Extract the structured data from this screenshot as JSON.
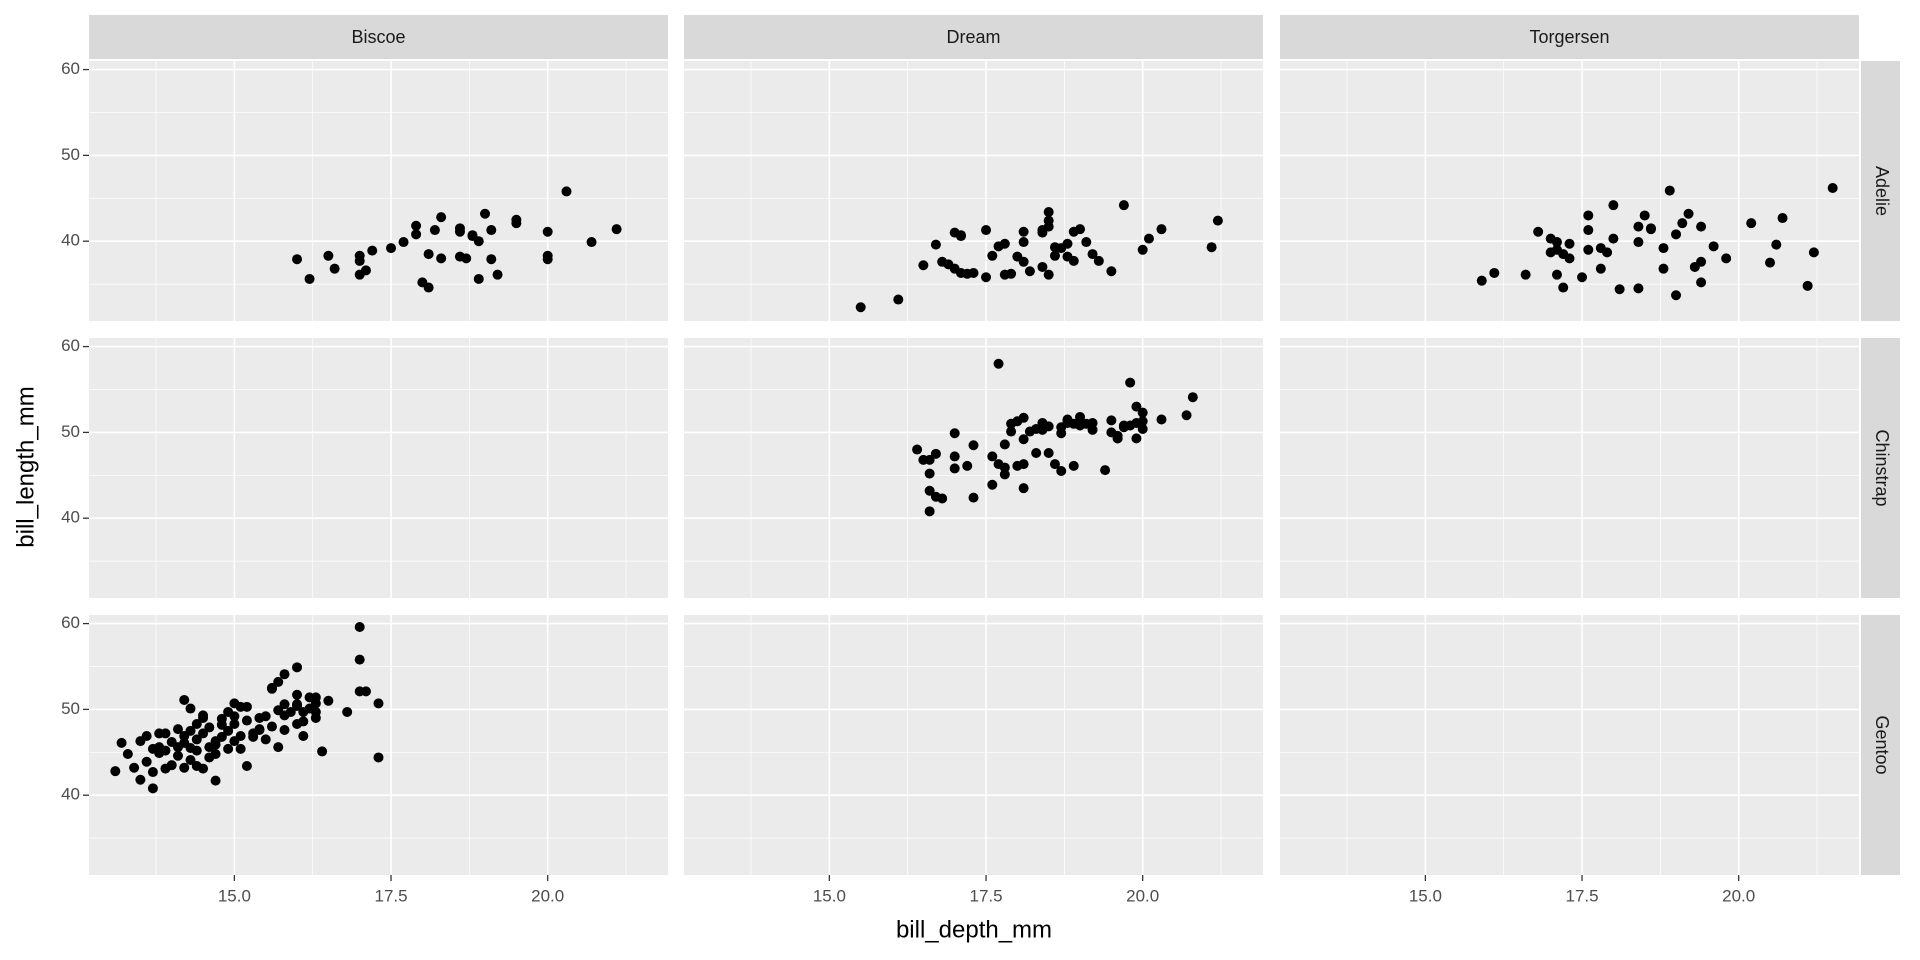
{
  "chart_data": {
    "type": "scatter",
    "x_label": "bill_depth_mm",
    "y_label": "bill_length_mm",
    "columns": [
      "Biscoe",
      "Dream",
      "Torgersen"
    ],
    "rows": [
      "Adelie",
      "Chinstrap",
      "Gentoo"
    ],
    "xlim": [
      12.68,
      21.92
    ],
    "ylim": [
      30.7,
      61.0
    ],
    "xticks": [
      {
        "value": 15,
        "label": "15.0"
      },
      17.5,
      {
        "value": 20,
        "label": "20.0"
      }
    ],
    "yticks": [
      40,
      50,
      60
    ],
    "color": "#000000",
    "grid": true,
    "panels": [
      [
        {
          "x": [
            16.0,
            16.2,
            16.5,
            16.6,
            17.0,
            17.0,
            17.0,
            17.1,
            17.2,
            17.5,
            17.7,
            17.9,
            17.9,
            18.0,
            18.1,
            18.1,
            18.2,
            18.3,
            18.3,
            18.6,
            18.6,
            18.6,
            18.7,
            18.8,
            18.8,
            18.9,
            18.9,
            19.0,
            19.1,
            19.1,
            19.2,
            19.5,
            19.5,
            20.0,
            20.0,
            20.0,
            20.3,
            20.7,
            21.1
          ],
          "y": [
            37.9,
            35.6,
            38.3,
            36.8,
            36.1,
            37.7,
            38.3,
            36.6,
            38.9,
            39.2,
            39.9,
            40.8,
            41.8,
            35.2,
            34.6,
            38.5,
            41.3,
            42.8,
            38.0,
            41.1,
            41.5,
            38.2,
            38.0,
            40.7,
            40.6,
            35.6,
            40.0,
            43.2,
            41.3,
            37.9,
            36.1,
            42.5,
            42.1,
            41.1,
            38.3,
            37.9,
            45.8,
            39.9,
            41.4
          ]
        },
        {
          "x": [
            15.5,
            16.1,
            16.5,
            16.7,
            16.8,
            16.9,
            17.0,
            17.0,
            17.1,
            17.1,
            17.1,
            17.2,
            17.3,
            17.5,
            17.5,
            17.6,
            17.7,
            17.8,
            17.8,
            17.9,
            18.0,
            18.1,
            18.1,
            18.1,
            18.2,
            18.4,
            18.4,
            18.4,
            18.5,
            18.5,
            18.5,
            18.6,
            18.6,
            18.7,
            18.8,
            18.8,
            18.9,
            18.9,
            19.0,
            19.1,
            19.2,
            19.3,
            19.5,
            19.7,
            20.0,
            20.1,
            20.3,
            21.1,
            21.2,
            18.5
          ],
          "y": [
            32.3,
            33.2,
            37.2,
            39.6,
            37.6,
            37.3,
            41.0,
            36.8,
            40.6,
            36.3,
            40.7,
            36.2,
            36.3,
            41.3,
            35.8,
            38.3,
            39.4,
            36.1,
            39.7,
            36.2,
            38.2,
            41.1,
            37.6,
            39.9,
            36.5,
            41.0,
            37.0,
            41.3,
            43.4,
            42.4,
            36.1,
            39.3,
            38.3,
            39.2,
            38.2,
            39.7,
            41.1,
            37.7,
            41.4,
            39.9,
            38.5,
            37.7,
            36.5,
            44.2,
            39.0,
            40.3,
            41.4,
            39.3,
            42.4,
            41.7
          ]
        },
        {
          "x": [
            15.9,
            16.1,
            16.6,
            16.8,
            17.0,
            17.0,
            17.1,
            17.1,
            17.1,
            17.2,
            17.2,
            17.3,
            17.3,
            17.5,
            17.6,
            17.6,
            17.6,
            17.8,
            17.8,
            17.9,
            18.0,
            18.0,
            18.1,
            18.4,
            18.4,
            18.4,
            18.5,
            18.6,
            18.6,
            18.8,
            18.8,
            18.9,
            19.0,
            19.0,
            19.1,
            19.2,
            19.3,
            19.4,
            19.4,
            19.4,
            19.6,
            19.8,
            20.2,
            20.5,
            20.6,
            20.7,
            21.1,
            21.2,
            21.5
          ],
          "y": [
            35.4,
            36.3,
            36.1,
            41.1,
            40.3,
            38.7,
            36.1,
            39.0,
            39.9,
            38.5,
            34.6,
            39.7,
            38.0,
            35.8,
            41.3,
            43.0,
            39.0,
            39.2,
            36.8,
            38.7,
            40.3,
            44.2,
            34.4,
            41.7,
            34.5,
            39.9,
            43.0,
            41.5,
            41.4,
            39.2,
            36.8,
            45.9,
            33.7,
            40.8,
            42.1,
            43.2,
            37.0,
            37.6,
            41.7,
            35.2,
            39.4,
            38.0,
            42.1,
            37.5,
            39.6,
            42.7,
            34.8,
            38.7,
            46.2
          ]
        }
      ],
      [
        {
          "x": [],
          "y": []
        },
        {
          "x": [
            16.4,
            16.5,
            16.6,
            16.6,
            16.6,
            16.6,
            16.7,
            16.7,
            16.8,
            17.0,
            17.0,
            17.0,
            17.2,
            17.3,
            17.3,
            17.6,
            17.6,
            17.7,
            17.7,
            17.8,
            17.8,
            17.8,
            17.9,
            17.9,
            18.0,
            18.0,
            18.1,
            18.1,
            18.1,
            18.1,
            18.2,
            18.3,
            18.3,
            18.4,
            18.4,
            18.5,
            18.5,
            18.6,
            18.7,
            18.7,
            18.7,
            18.8,
            18.8,
            18.8,
            18.9,
            18.9,
            19.0,
            19.0,
            19.1,
            19.2,
            19.2,
            19.4,
            19.5,
            19.5,
            19.6,
            19.6,
            19.6,
            19.7,
            19.7,
            19.8,
            19.8,
            19.9,
            19.9,
            19.9,
            20.0,
            20.0,
            20.0,
            20.3,
            20.7,
            20.8
          ],
          "y": [
            48.0,
            46.8,
            45.2,
            46.8,
            43.2,
            40.8,
            42.5,
            47.5,
            42.3,
            47.2,
            49.9,
            45.8,
            46.1,
            48.5,
            42.4,
            47.2,
            43.9,
            46.3,
            58.0,
            48.6,
            45.1,
            45.9,
            51.0,
            50.1,
            46.1,
            51.3,
            46.3,
            43.5,
            51.7,
            49.2,
            50.1,
            47.6,
            50.4,
            50.3,
            51.1,
            47.6,
            50.7,
            46.3,
            49.9,
            45.5,
            50.6,
            51.4,
            51.5,
            51.1,
            46.1,
            51.0,
            51.8,
            50.8,
            51.0,
            51.1,
            50.3,
            45.6,
            50.0,
            51.4,
            49.6,
            49.3,
            49.3,
            50.8,
            50.6,
            50.8,
            55.8,
            53.0,
            51.1,
            49.3,
            50.4,
            52.3,
            51.3,
            51.5,
            52.0,
            54.1
          ]
        },
        {
          "x": [],
          "y": []
        }
      ],
      [
        {
          "x": [
            13.1,
            13.2,
            13.3,
            13.4,
            13.5,
            13.5,
            13.6,
            13.6,
            13.7,
            13.7,
            13.7,
            13.8,
            13.8,
            13.8,
            13.9,
            13.9,
            13.9,
            14.0,
            14.0,
            14.1,
            14.1,
            14.1,
            14.2,
            14.2,
            14.2,
            14.2,
            14.3,
            14.3,
            14.3,
            14.3,
            14.4,
            14.4,
            14.4,
            14.4,
            14.5,
            14.5,
            14.5,
            14.5,
            14.6,
            14.6,
            14.6,
            14.7,
            14.7,
            14.7,
            14.7,
            14.8,
            14.8,
            14.8,
            14.9,
            14.9,
            14.9,
            15.0,
            15.0,
            15.0,
            15.0,
            15.1,
            15.1,
            15.1,
            15.2,
            15.2,
            15.2,
            15.3,
            15.3,
            15.4,
            15.4,
            15.4,
            15.5,
            15.5,
            15.6,
            15.6,
            15.6,
            15.7,
            15.7,
            15.7,
            15.8,
            15.8,
            15.8,
            15.8,
            15.9,
            16.0,
            16.0,
            16.0,
            16.0,
            16.1,
            16.1,
            16.1,
            16.2,
            16.2,
            16.3,
            16.3,
            16.3,
            16.4,
            16.3,
            16.5,
            16.8,
            17.0,
            17.0,
            17.0,
            17.1,
            17.3,
            17.3,
            16.0
          ],
          "y": [
            42.8,
            46.1,
            44.8,
            43.2,
            46.3,
            41.8,
            43.9,
            46.9,
            45.4,
            42.7,
            40.8,
            47.2,
            44.9,
            45.6,
            47.2,
            43.1,
            45.2,
            46.2,
            43.5,
            47.7,
            45.6,
            44.6,
            46.9,
            51.1,
            43.2,
            46.1,
            44.1,
            47.5,
            50.1,
            45.5,
            48.3,
            46.5,
            43.4,
            45.2,
            43.1,
            49.0,
            47.2,
            49.3,
            45.6,
            47.9,
            44.4,
            46.3,
            41.7,
            44.8,
            45.9,
            48.9,
            46.8,
            48.2,
            45.4,
            49.7,
            47.5,
            50.7,
            49.2,
            48.3,
            46.3,
            50.3,
            46.9,
            45.4,
            48.7,
            43.4,
            50.3,
            47.2,
            46.8,
            47.6,
            49.0,
            47.7,
            46.5,
            49.2,
            52.5,
            52.4,
            48.0,
            45.6,
            53.2,
            49.9,
            47.6,
            54.1,
            49.3,
            50.6,
            49.7,
            51.7,
            50.4,
            48.3,
            50.6,
            48.6,
            49.7,
            46.9,
            51.4,
            50.1,
            49.7,
            50.7,
            49.0,
            45.1,
            51.4,
            51.0,
            49.7,
            59.6,
            55.8,
            52.1,
            52.1,
            50.7,
            44.4,
            54.9
          ]
        },
        {
          "x": [],
          "y": []
        },
        {
          "x": [],
          "y": []
        }
      ]
    ]
  }
}
